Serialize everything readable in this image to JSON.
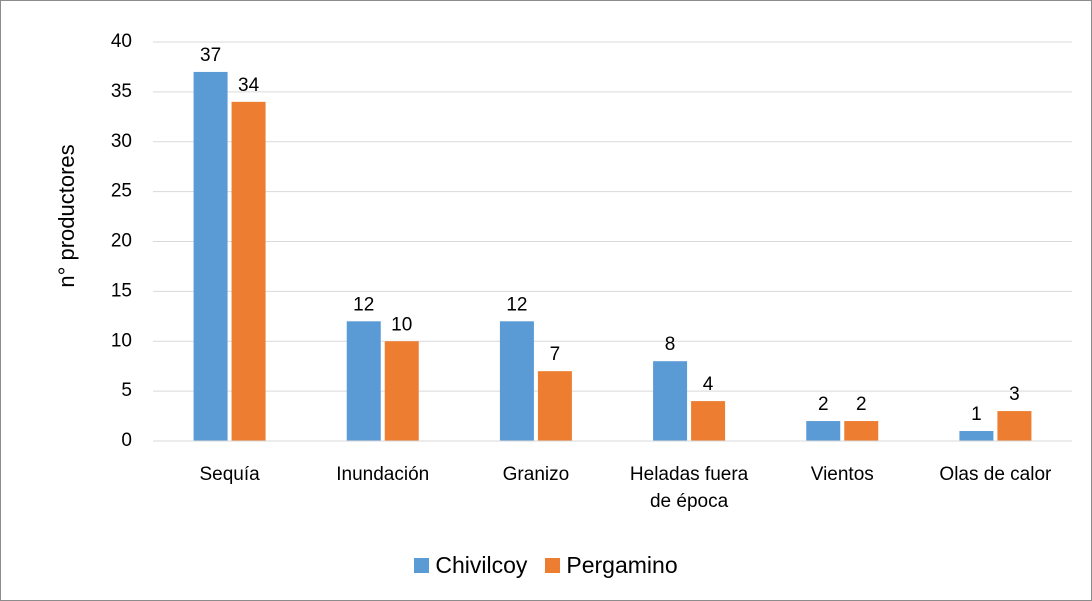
{
  "chart_data": {
    "type": "bar",
    "y_label": "n° productores",
    "categories": [
      "Sequía",
      "Inundación",
      "Granizo",
      "Heladas fuera de época",
      "Vientos",
      "Olas de calor"
    ],
    "series": [
      {
        "name": "Chivilcoy",
        "color": "#5b9bd5",
        "values": [
          37,
          12,
          12,
          8,
          2,
          1
        ]
      },
      {
        "name": "Pergamino",
        "color": "#ed7d31",
        "values": [
          34,
          10,
          7,
          4,
          2,
          3
        ]
      }
    ],
    "ylim": [
      0,
      40
    ],
    "yticks": [
      0,
      5,
      10,
      15,
      20,
      25,
      30,
      35,
      40
    ],
    "grid": true,
    "legend": "bottom"
  }
}
